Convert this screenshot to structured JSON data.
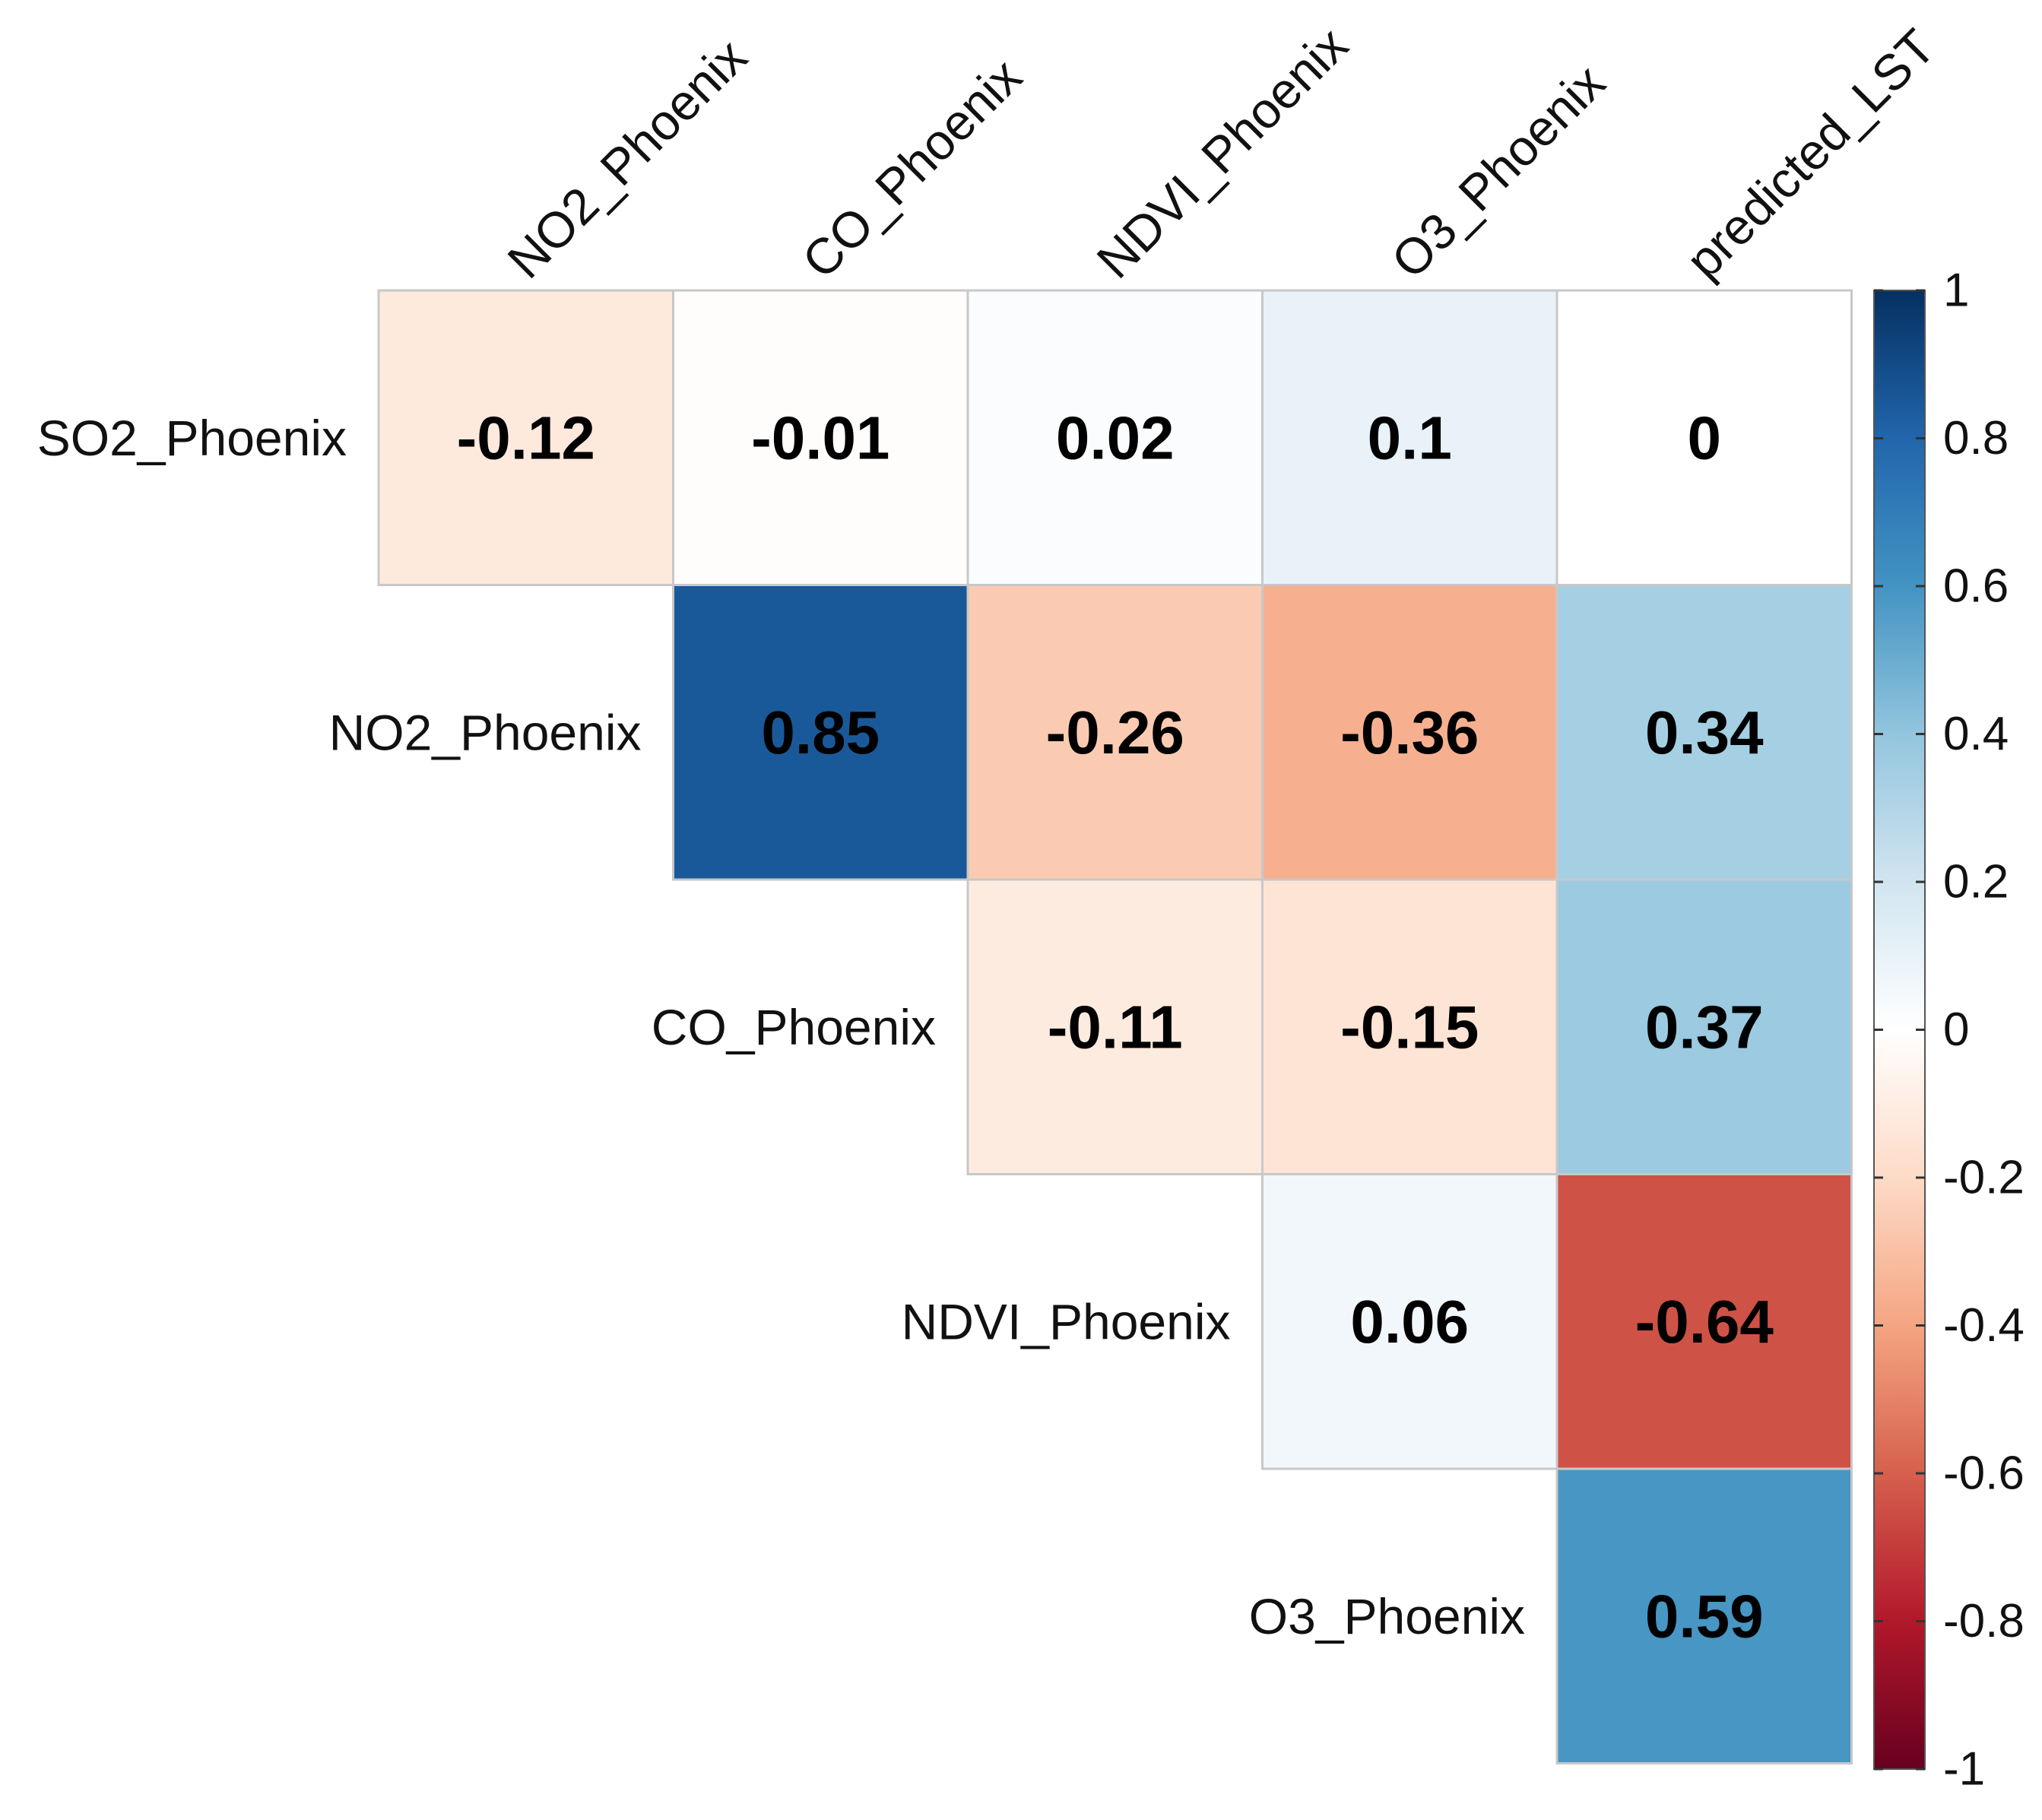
{
  "chart_data": {
    "type": "heatmap",
    "title": "",
    "columns": [
      "NO2_Phoenix",
      "CO_Phoenix",
      "NDVI_Phoenix",
      "O3_Phoenix",
      "predicted_LST"
    ],
    "rows": [
      "SO2_Phoenix",
      "NO2_Phoenix",
      "CO_Phoenix",
      "NDVI_Phoenix",
      "O3_Phoenix"
    ],
    "cells": [
      {
        "row": 0,
        "col": 0,
        "value": -0.12,
        "label": "-0.12"
      },
      {
        "row": 0,
        "col": 1,
        "value": -0.01,
        "label": "-0.01"
      },
      {
        "row": 0,
        "col": 2,
        "value": 0.02,
        "label": "0.02"
      },
      {
        "row": 0,
        "col": 3,
        "value": 0.1,
        "label": "0.1"
      },
      {
        "row": 0,
        "col": 4,
        "value": 0,
        "label": "0"
      },
      {
        "row": 1,
        "col": 1,
        "value": 0.85,
        "label": "0.85"
      },
      {
        "row": 1,
        "col": 2,
        "value": -0.26,
        "label": "-0.26"
      },
      {
        "row": 1,
        "col": 3,
        "value": -0.36,
        "label": "-0.36"
      },
      {
        "row": 1,
        "col": 4,
        "value": 0.34,
        "label": "0.34"
      },
      {
        "row": 2,
        "col": 2,
        "value": -0.11,
        "label": "-0.11"
      },
      {
        "row": 2,
        "col": 3,
        "value": -0.15,
        "label": "-0.15"
      },
      {
        "row": 2,
        "col": 4,
        "value": 0.37,
        "label": "0.37"
      },
      {
        "row": 3,
        "col": 3,
        "value": 0.06,
        "label": "0.06"
      },
      {
        "row": 3,
        "col": 4,
        "value": -0.64,
        "label": "-0.64"
      },
      {
        "row": 4,
        "col": 4,
        "value": 0.59,
        "label": "0.59"
      }
    ],
    "colorbar": {
      "range": [
        -1,
        1
      ],
      "ticks": [
        {
          "value": 1,
          "label": "1"
        },
        {
          "value": 0.8,
          "label": "0.8"
        },
        {
          "value": 0.6,
          "label": "0.6"
        },
        {
          "value": 0.4,
          "label": "0.4"
        },
        {
          "value": 0.2,
          "label": "0.2"
        },
        {
          "value": 0,
          "label": "0"
        },
        {
          "value": -0.2,
          "label": "-0.2"
        },
        {
          "value": -0.4,
          "label": "-0.4"
        },
        {
          "value": -0.6,
          "label": "-0.6"
        },
        {
          "value": -0.8,
          "label": "-0.8"
        },
        {
          "value": -1,
          "label": "-1"
        }
      ],
      "palette": [
        "#67001F",
        "#B2182B",
        "#D6604D",
        "#F4A582",
        "#FDDBC7",
        "#FFFFFF",
        "#D1E5F0",
        "#92C5DE",
        "#4393C3",
        "#2166AC",
        "#053061"
      ]
    },
    "legend": "right"
  }
}
